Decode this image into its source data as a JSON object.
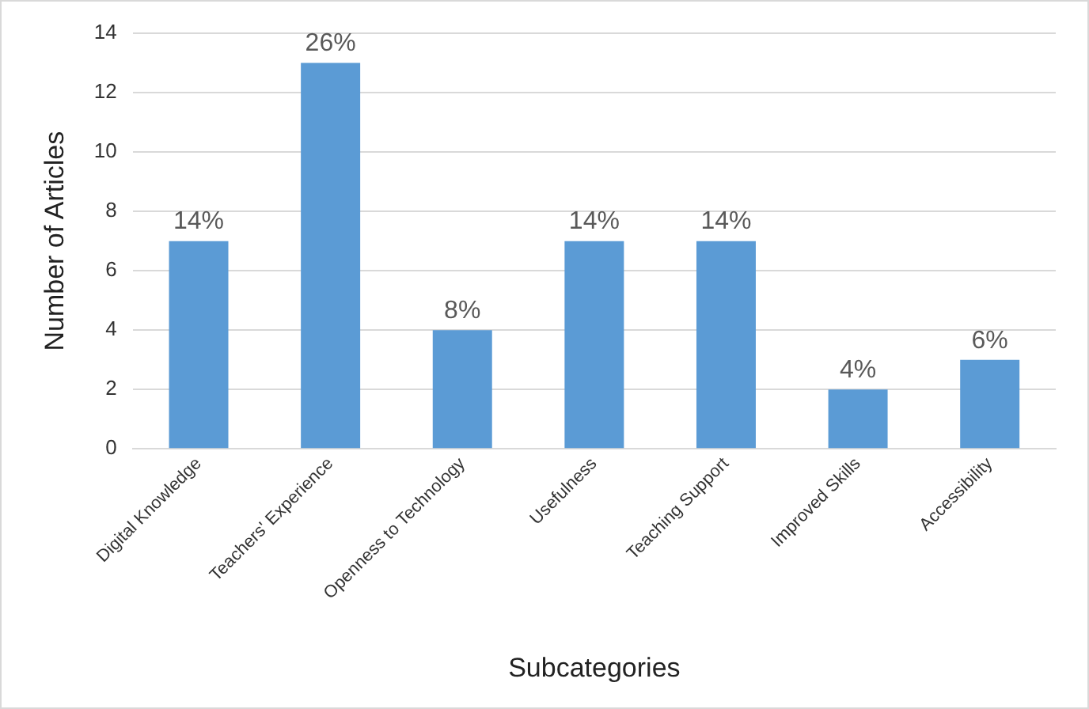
{
  "chart_data": {
    "type": "bar",
    "categories": [
      "Digital Knowledge",
      "Teachers' Experience",
      "Openness to Technology",
      "Usefulness",
      "Teaching Support",
      "Improved Skills",
      "Accessibility"
    ],
    "values": [
      7,
      13,
      4,
      7,
      7,
      2,
      3
    ],
    "annotations": [
      {
        "text": "14%",
        "x": "Digital Knowledge",
        "y": 7
      },
      {
        "text": "26%",
        "x": "Teachers' Experience",
        "y": 13
      },
      {
        "text": "8%",
        "x": "Openness to Technology",
        "y": 4
      },
      {
        "text": "14%",
        "x": "Usefulness",
        "y": 7
      },
      {
        "text": "14%",
        "x": "Teaching Support",
        "y": 7
      },
      {
        "text": "4%",
        "x": "Improved Skills",
        "y": 2
      },
      {
        "text": "6%",
        "x": "Accessibility",
        "y": 3
      }
    ],
    "color": "#5b9bd5",
    "xlabel": "Subcategories",
    "ylabel": "Number of Articles",
    "ylim": [
      0,
      14
    ],
    "yticks": [
      0,
      2,
      4,
      6,
      8,
      10,
      12,
      14
    ],
    "grid": "y",
    "legend": false
  }
}
